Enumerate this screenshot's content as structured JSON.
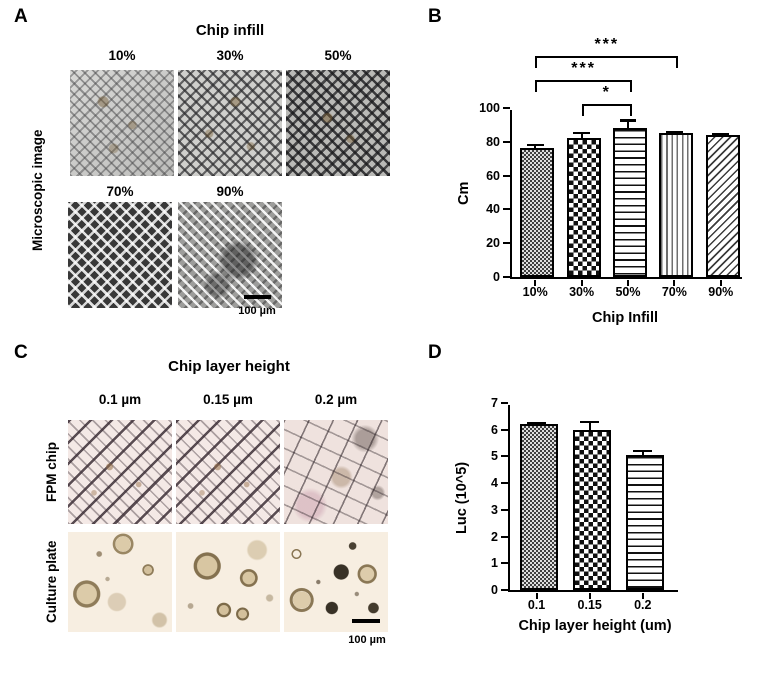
{
  "panels": {
    "a": {
      "label": "A",
      "title": "Chip infill",
      "row_label": "Microscopic image",
      "columns": [
        "10%",
        "30%",
        "50%",
        "70%",
        "90%"
      ],
      "scalebar_label": "100 µm"
    },
    "b": {
      "label": "B"
    },
    "c": {
      "label": "C",
      "title": "Chip layer height",
      "columns": [
        "0.1 µm",
        "0.15 µm",
        "0.2 µm"
      ],
      "row_labels": [
        "FPM chip",
        "Culture plate"
      ],
      "scalebar_label": "100 µm"
    },
    "d": {
      "label": "D"
    }
  },
  "chart_data": [
    {
      "type": "bar",
      "title": "",
      "categories": [
        "10%",
        "30%",
        "50%",
        "70%",
        "90%"
      ],
      "values": [
        74,
        80,
        86,
        83,
        81.5
      ],
      "errors": [
        3.5,
        4.5,
        6,
        2,
        2.5
      ],
      "patterns": [
        "fine-checker",
        "checkerboard",
        "hlines",
        "vlines",
        "diagonal"
      ],
      "xlabel": "Chip Infill",
      "ylabel": "Cm",
      "ylim": [
        0,
        100
      ],
      "ytick_step": 20,
      "grid": false,
      "legend": "none",
      "significance": [
        {
          "from": 1,
          "to": 2,
          "label": "*"
        },
        {
          "from": 0,
          "to": 2,
          "label": "***"
        },
        {
          "from": 0,
          "to": 3,
          "label": "***"
        }
      ]
    },
    {
      "type": "bar",
      "title": "",
      "categories": [
        "0.1",
        "0.15",
        "0.2"
      ],
      "values": [
        6.05,
        5.85,
        4.9
      ],
      "errors": [
        0.15,
        0.4,
        0.25
      ],
      "patterns": [
        "fine-checker",
        "checkerboard",
        "hlines"
      ],
      "xlabel": "Chip layer height (um)",
      "ylabel": "Luc (10^5)",
      "ylim": [
        0,
        7
      ],
      "ytick_step": 1,
      "grid": false,
      "legend": "none",
      "slots": 3.2,
      "significance": []
    }
  ]
}
